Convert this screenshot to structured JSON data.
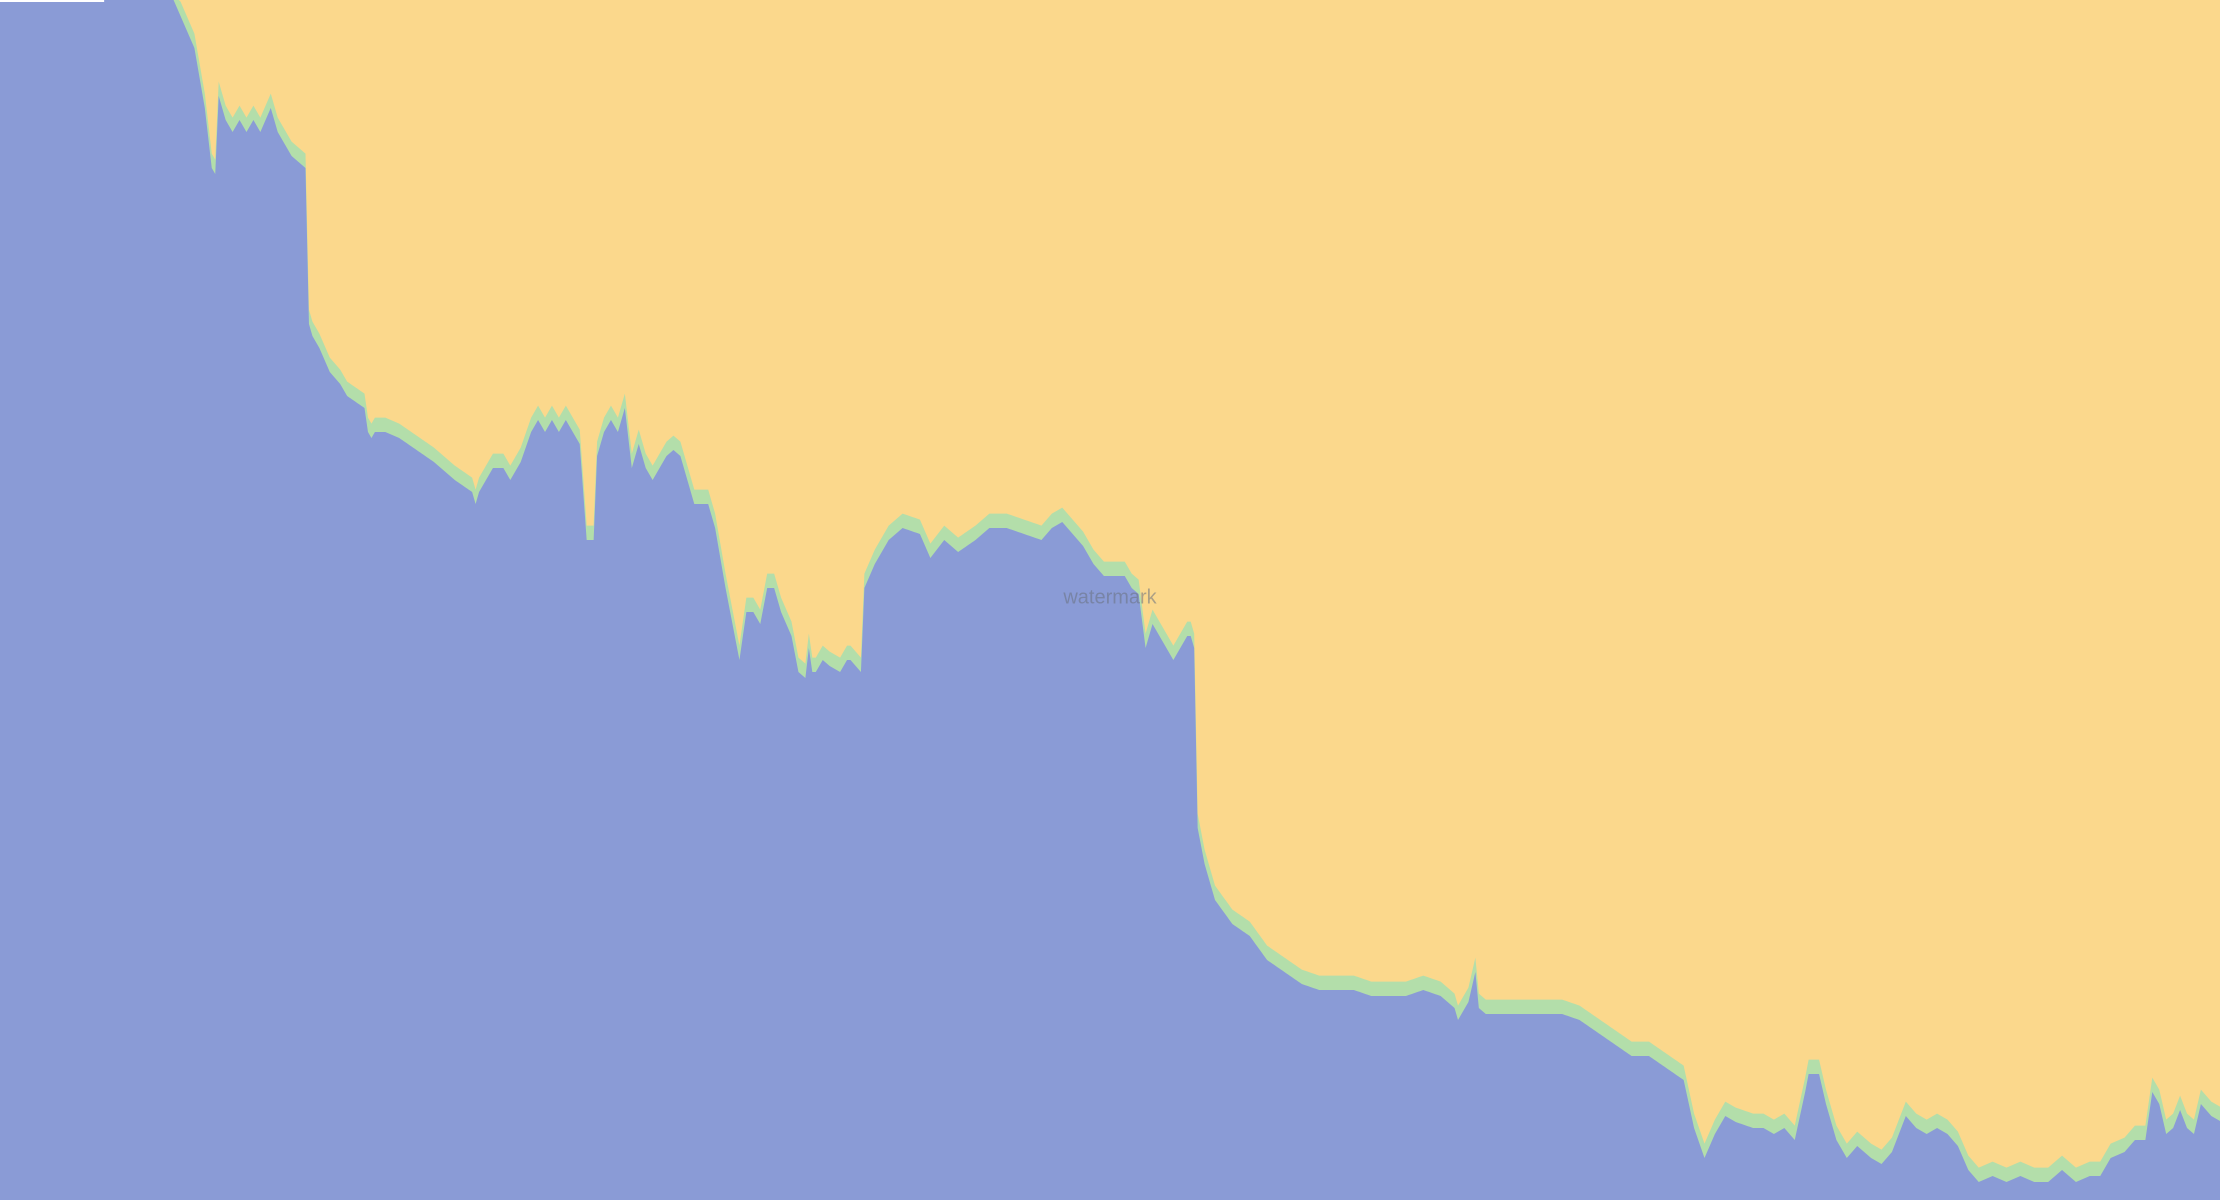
{
  "watermark": "watermark",
  "chart_data": {
    "type": "area",
    "stacked": true,
    "normalized": true,
    "x_count": 1280,
    "ylim": [
      0,
      100
    ],
    "grid": false,
    "legend": "none",
    "colors": {
      "bottom": "#8a9bd6",
      "middle": "#b3deaa",
      "top": "#fbd88c",
      "marker": "#ffffff"
    },
    "series": [
      {
        "key": "bottom",
        "keypoints": [
          [
            0,
            100
          ],
          [
            100,
            100
          ],
          [
            106,
            98
          ],
          [
            112,
            96
          ],
          [
            118,
            91
          ],
          [
            122,
            86
          ],
          [
            124,
            85.5
          ],
          [
            126,
            92
          ],
          [
            130,
            90
          ],
          [
            134,
            89
          ],
          [
            138,
            90
          ],
          [
            142,
            89
          ],
          [
            146,
            90
          ],
          [
            150,
            89
          ],
          [
            156,
            91
          ],
          [
            160,
            89
          ],
          [
            168,
            87
          ],
          [
            172,
            86.5
          ],
          [
            176,
            86
          ],
          [
            178,
            73
          ],
          [
            180,
            72
          ],
          [
            184,
            71
          ],
          [
            190,
            69
          ],
          [
            196,
            68
          ],
          [
            200,
            67
          ],
          [
            210,
            66
          ],
          [
            212,
            64
          ],
          [
            214,
            63.5
          ],
          [
            216,
            64
          ],
          [
            222,
            64
          ],
          [
            230,
            63.5
          ],
          [
            240,
            62.5
          ],
          [
            250,
            61.5
          ],
          [
            262,
            60
          ],
          [
            272,
            59
          ],
          [
            274,
            58
          ],
          [
            276,
            59
          ],
          [
            280,
            60
          ],
          [
            284,
            61
          ],
          [
            290,
            61
          ],
          [
            294,
            60
          ],
          [
            300,
            61.5
          ],
          [
            306,
            64
          ],
          [
            310,
            65
          ],
          [
            314,
            64
          ],
          [
            318,
            65
          ],
          [
            322,
            64
          ],
          [
            326,
            65
          ],
          [
            330,
            64
          ],
          [
            334,
            63
          ],
          [
            338,
            55
          ],
          [
            342,
            55
          ],
          [
            344,
            62
          ],
          [
            348,
            64
          ],
          [
            352,
            65
          ],
          [
            356,
            64
          ],
          [
            360,
            66
          ],
          [
            364,
            61
          ],
          [
            368,
            63
          ],
          [
            372,
            61
          ],
          [
            376,
            60
          ],
          [
            380,
            61
          ],
          [
            384,
            62
          ],
          [
            388,
            62.5
          ],
          [
            392,
            62
          ],
          [
            396,
            60
          ],
          [
            400,
            58
          ],
          [
            408,
            58
          ],
          [
            412,
            56
          ],
          [
            418,
            51
          ],
          [
            422,
            48
          ],
          [
            426,
            45
          ],
          [
            428,
            47
          ],
          [
            430,
            49
          ],
          [
            434,
            49
          ],
          [
            438,
            48
          ],
          [
            442,
            51
          ],
          [
            446,
            51
          ],
          [
            450,
            49
          ],
          [
            456,
            47
          ],
          [
            460,
            44
          ],
          [
            464,
            43.5
          ],
          [
            466,
            46
          ],
          [
            468,
            44
          ],
          [
            470,
            44
          ],
          [
            474,
            45
          ],
          [
            478,
            44.5
          ],
          [
            484,
            44
          ],
          [
            488,
            45
          ],
          [
            490,
            45
          ],
          [
            496,
            44
          ],
          [
            498,
            51
          ],
          [
            504,
            53
          ],
          [
            512,
            55
          ],
          [
            520,
            56
          ],
          [
            530,
            55.5
          ],
          [
            536,
            53.5
          ],
          [
            544,
            55
          ],
          [
            552,
            54
          ],
          [
            562,
            55
          ],
          [
            570,
            56
          ],
          [
            580,
            56
          ],
          [
            590,
            55.5
          ],
          [
            600,
            55
          ],
          [
            606,
            56
          ],
          [
            612,
            56.5
          ],
          [
            618,
            55.5
          ],
          [
            624,
            54.5
          ],
          [
            630,
            53
          ],
          [
            636,
            52
          ],
          [
            642,
            52
          ],
          [
            648,
            52
          ],
          [
            652,
            51
          ],
          [
            656,
            50.5
          ],
          [
            660,
            46
          ],
          [
            664,
            48
          ],
          [
            668,
            47
          ],
          [
            672,
            46
          ],
          [
            676,
            45
          ],
          [
            680,
            46
          ],
          [
            684,
            47
          ],
          [
            686,
            47
          ],
          [
            688,
            46
          ],
          [
            690,
            31
          ],
          [
            694,
            28
          ],
          [
            700,
            25
          ],
          [
            710,
            23
          ],
          [
            720,
            22
          ],
          [
            730,
            20
          ],
          [
            740,
            19
          ],
          [
            750,
            18
          ],
          [
            760,
            17.5
          ],
          [
            770,
            17.5
          ],
          [
            780,
            17.5
          ],
          [
            790,
            17
          ],
          [
            800,
            17
          ],
          [
            810,
            17
          ],
          [
            820,
            17.5
          ],
          [
            830,
            17
          ],
          [
            838,
            16
          ],
          [
            840,
            15
          ],
          [
            846,
            16.5
          ],
          [
            850,
            19
          ],
          [
            852,
            16
          ],
          [
            856,
            15.5
          ],
          [
            862,
            15.5
          ],
          [
            870,
            15.5
          ],
          [
            880,
            15.5
          ],
          [
            890,
            15.5
          ],
          [
            900,
            15.5
          ],
          [
            910,
            15
          ],
          [
            920,
            14
          ],
          [
            930,
            13
          ],
          [
            940,
            12
          ],
          [
            950,
            12
          ],
          [
            960,
            11
          ],
          [
            970,
            10
          ],
          [
            976,
            6
          ],
          [
            982,
            3.5
          ],
          [
            988,
            5.5
          ],
          [
            994,
            7
          ],
          [
            1000,
            6.5
          ],
          [
            1010,
            6
          ],
          [
            1016,
            6
          ],
          [
            1022,
            5.5
          ],
          [
            1028,
            6
          ],
          [
            1034,
            5
          ],
          [
            1040,
            9
          ],
          [
            1042,
            10.5
          ],
          [
            1048,
            10.5
          ],
          [
            1052,
            8
          ],
          [
            1058,
            5
          ],
          [
            1064,
            3.5
          ],
          [
            1070,
            4.5
          ],
          [
            1078,
            3.5
          ],
          [
            1084,
            3
          ],
          [
            1090,
            4
          ],
          [
            1098,
            7
          ],
          [
            1104,
            6
          ],
          [
            1110,
            5.5
          ],
          [
            1116,
            6
          ],
          [
            1122,
            5.5
          ],
          [
            1128,
            4.5
          ],
          [
            1134,
            2.5
          ],
          [
            1140,
            1.5
          ],
          [
            1148,
            2
          ],
          [
            1156,
            1.5
          ],
          [
            1164,
            2
          ],
          [
            1172,
            1.5
          ],
          [
            1180,
            1.5
          ],
          [
            1188,
            2.5
          ],
          [
            1196,
            1.5
          ],
          [
            1204,
            2
          ],
          [
            1210,
            2
          ],
          [
            1216,
            3.5
          ],
          [
            1224,
            4
          ],
          [
            1230,
            5
          ],
          [
            1236,
            5
          ],
          [
            1240,
            9
          ],
          [
            1244,
            8
          ],
          [
            1248,
            5.5
          ],
          [
            1252,
            6
          ],
          [
            1256,
            7.5
          ],
          [
            1260,
            6
          ],
          [
            1264,
            5.5
          ],
          [
            1268,
            8
          ],
          [
            1274,
            7
          ],
          [
            1280,
            6.5
          ]
        ]
      },
      {
        "key": "middle",
        "thickness": 1.2
      },
      {
        "key": "top",
        "fill": "remainder"
      }
    ],
    "top_marker": {
      "x_start": 0,
      "x_end": 60,
      "value": 100
    }
  }
}
